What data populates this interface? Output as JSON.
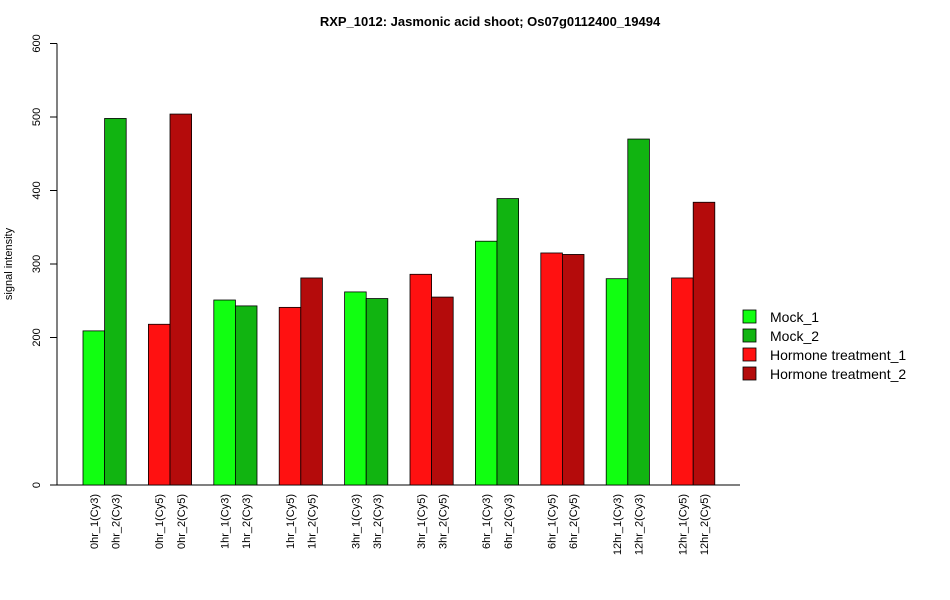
{
  "chart_data": {
    "type": "bar",
    "title": "RXP_1012: Jasmonic acid shoot; Os07g0112400_19494",
    "ylabel": "signal intensity",
    "xlabel": "",
    "ylim": [
      0,
      600
    ],
    "y_ticks": [
      0,
      200,
      300,
      400,
      500,
      600
    ],
    "y_scale_note": "axis compressed between 0 and 200 (tick spacing not linear below 200)",
    "grid": false,
    "legend_position": "right",
    "legend": [
      {
        "name": "Mock_1",
        "color": "#11ff11"
      },
      {
        "name": "Mock_2",
        "color": "#11b411"
      },
      {
        "name": "Hormone treatment_1",
        "color": "#ff1111"
      },
      {
        "name": "Hormone treatment_2",
        "color": "#b40b0b"
      }
    ],
    "bars": [
      {
        "label": "0hr_1(Cy3)",
        "value": 209,
        "color": "#11ff11"
      },
      {
        "label": "0hr_2(Cy3)",
        "value": 498,
        "color": "#11b411"
      },
      {
        "label": "0hr_1(Cy5)",
        "value": 218,
        "color": "#ff1111"
      },
      {
        "label": "0hr_2(Cy5)",
        "value": 504,
        "color": "#b40b0b"
      },
      {
        "label": "1hr_1(Cy3)",
        "value": 251,
        "color": "#11ff11"
      },
      {
        "label": "1hr_2(Cy3)",
        "value": 243,
        "color": "#11b411"
      },
      {
        "label": "1hr_1(Cy5)",
        "value": 241,
        "color": "#ff1111"
      },
      {
        "label": "1hr_2(Cy5)",
        "value": 281,
        "color": "#b40b0b"
      },
      {
        "label": "3hr_1(Cy3)",
        "value": 262,
        "color": "#11ff11"
      },
      {
        "label": "3hr_2(Cy3)",
        "value": 253,
        "color": "#11b411"
      },
      {
        "label": "3hr_1(Cy5)",
        "value": 286,
        "color": "#ff1111"
      },
      {
        "label": "3hr_2(Cy5)",
        "value": 255,
        "color": "#b40b0b"
      },
      {
        "label": "6hr_1(Cy3)",
        "value": 331,
        "color": "#11ff11"
      },
      {
        "label": "6hr_2(Cy3)",
        "value": 389,
        "color": "#11b411"
      },
      {
        "label": "6hr_1(Cy5)",
        "value": 315,
        "color": "#ff1111"
      },
      {
        "label": "6hr_2(Cy5)",
        "value": 313,
        "color": "#b40b0b"
      },
      {
        "label": "12hr_1(Cy3)",
        "value": 280,
        "color": "#11ff11"
      },
      {
        "label": "12hr_2(Cy3)",
        "value": 470,
        "color": "#11b411"
      },
      {
        "label": "12hr_1(Cy5)",
        "value": 281,
        "color": "#ff1111"
      },
      {
        "label": "12hr_2(Cy5)",
        "value": 384,
        "color": "#b40b0b"
      }
    ]
  }
}
